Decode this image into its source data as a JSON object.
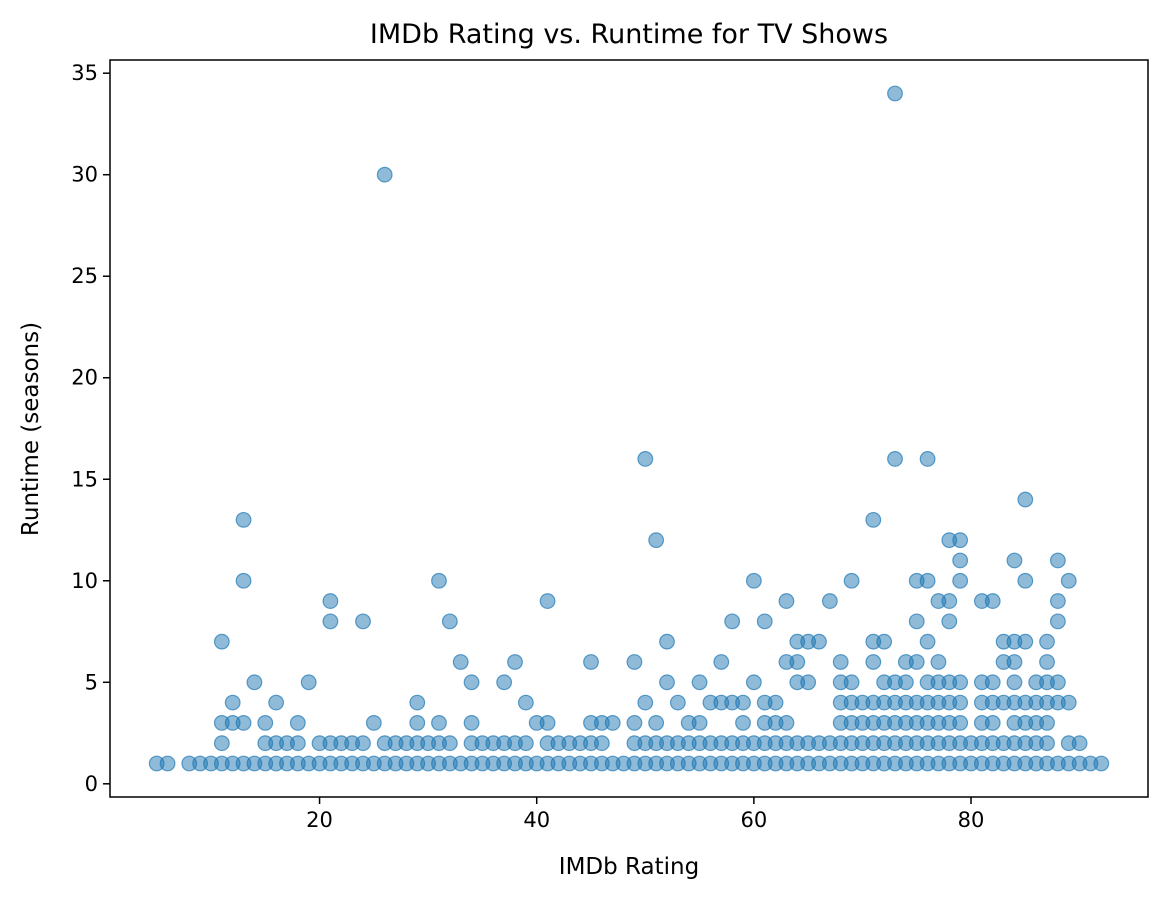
{
  "chart_data": {
    "type": "scatter",
    "title": "IMDb Rating vs. Runtime for TV Shows",
    "xlabel": "IMDb Rating",
    "ylabel": "Runtime (seasons)",
    "xlim": [
      0.7,
      96.3
    ],
    "ylim": [
      -0.65,
      35.65
    ],
    "x_ticks": [
      20,
      40,
      60,
      80
    ],
    "y_ticks": [
      0,
      5,
      10,
      15,
      20,
      25,
      30,
      35
    ],
    "grid": false,
    "legend": "none",
    "marker_color": "#1f77b4",
    "marker_opacity": 0.5,
    "points": [
      [
        5,
        1
      ],
      [
        6,
        1
      ],
      [
        8,
        1
      ],
      [
        9,
        1
      ],
      [
        10,
        1
      ],
      [
        11,
        1
      ],
      [
        12,
        1
      ],
      [
        13,
        1
      ],
      [
        14,
        1
      ],
      [
        15,
        1
      ],
      [
        16,
        1
      ],
      [
        17,
        1
      ],
      [
        18,
        1
      ],
      [
        19,
        1
      ],
      [
        20,
        1
      ],
      [
        21,
        1
      ],
      [
        22,
        1
      ],
      [
        23,
        1
      ],
      [
        24,
        1
      ],
      [
        25,
        1
      ],
      [
        26,
        1
      ],
      [
        27,
        1
      ],
      [
        28,
        1
      ],
      [
        29,
        1
      ],
      [
        30,
        1
      ],
      [
        31,
        1
      ],
      [
        32,
        1
      ],
      [
        33,
        1
      ],
      [
        34,
        1
      ],
      [
        35,
        1
      ],
      [
        36,
        1
      ],
      [
        37,
        1
      ],
      [
        38,
        1
      ],
      [
        39,
        1
      ],
      [
        40,
        1
      ],
      [
        41,
        1
      ],
      [
        42,
        1
      ],
      [
        43,
        1
      ],
      [
        44,
        1
      ],
      [
        45,
        1
      ],
      [
        46,
        1
      ],
      [
        47,
        1
      ],
      [
        48,
        1
      ],
      [
        49,
        1
      ],
      [
        50,
        1
      ],
      [
        51,
        1
      ],
      [
        52,
        1
      ],
      [
        53,
        1
      ],
      [
        54,
        1
      ],
      [
        55,
        1
      ],
      [
        56,
        1
      ],
      [
        57,
        1
      ],
      [
        58,
        1
      ],
      [
        59,
        1
      ],
      [
        60,
        1
      ],
      [
        61,
        1
      ],
      [
        62,
        1
      ],
      [
        63,
        1
      ],
      [
        64,
        1
      ],
      [
        65,
        1
      ],
      [
        66,
        1
      ],
      [
        67,
        1
      ],
      [
        68,
        1
      ],
      [
        69,
        1
      ],
      [
        70,
        1
      ],
      [
        71,
        1
      ],
      [
        72,
        1
      ],
      [
        73,
        1
      ],
      [
        74,
        1
      ],
      [
        75,
        1
      ],
      [
        76,
        1
      ],
      [
        77,
        1
      ],
      [
        78,
        1
      ],
      [
        79,
        1
      ],
      [
        80,
        1
      ],
      [
        81,
        1
      ],
      [
        82,
        1
      ],
      [
        83,
        1
      ],
      [
        84,
        1
      ],
      [
        85,
        1
      ],
      [
        86,
        1
      ],
      [
        87,
        1
      ],
      [
        88,
        1
      ],
      [
        89,
        1
      ],
      [
        90,
        1
      ],
      [
        91,
        1
      ],
      [
        92,
        1
      ],
      [
        11,
        2
      ],
      [
        15,
        2
      ],
      [
        16,
        2
      ],
      [
        17,
        2
      ],
      [
        18,
        2
      ],
      [
        20,
        2
      ],
      [
        21,
        2
      ],
      [
        22,
        2
      ],
      [
        23,
        2
      ],
      [
        24,
        2
      ],
      [
        26,
        2
      ],
      [
        27,
        2
      ],
      [
        28,
        2
      ],
      [
        29,
        2
      ],
      [
        30,
        2
      ],
      [
        31,
        2
      ],
      [
        32,
        2
      ],
      [
        34,
        2
      ],
      [
        35,
        2
      ],
      [
        36,
        2
      ],
      [
        37,
        2
      ],
      [
        38,
        2
      ],
      [
        39,
        2
      ],
      [
        41,
        2
      ],
      [
        42,
        2
      ],
      [
        43,
        2
      ],
      [
        44,
        2
      ],
      [
        45,
        2
      ],
      [
        46,
        2
      ],
      [
        49,
        2
      ],
      [
        50,
        2
      ],
      [
        51,
        2
      ],
      [
        52,
        2
      ],
      [
        53,
        2
      ],
      [
        54,
        2
      ],
      [
        55,
        2
      ],
      [
        56,
        2
      ],
      [
        57,
        2
      ],
      [
        58,
        2
      ],
      [
        59,
        2
      ],
      [
        60,
        2
      ],
      [
        61,
        2
      ],
      [
        62,
        2
      ],
      [
        63,
        2
      ],
      [
        64,
        2
      ],
      [
        65,
        2
      ],
      [
        66,
        2
      ],
      [
        67,
        2
      ],
      [
        68,
        2
      ],
      [
        69,
        2
      ],
      [
        70,
        2
      ],
      [
        71,
        2
      ],
      [
        72,
        2
      ],
      [
        73,
        2
      ],
      [
        74,
        2
      ],
      [
        75,
        2
      ],
      [
        76,
        2
      ],
      [
        77,
        2
      ],
      [
        78,
        2
      ],
      [
        79,
        2
      ],
      [
        80,
        2
      ],
      [
        81,
        2
      ],
      [
        82,
        2
      ],
      [
        83,
        2
      ],
      [
        84,
        2
      ],
      [
        85,
        2
      ],
      [
        86,
        2
      ],
      [
        87,
        2
      ],
      [
        89,
        2
      ],
      [
        90,
        2
      ],
      [
        11,
        3
      ],
      [
        12,
        3
      ],
      [
        13,
        3
      ],
      [
        15,
        3
      ],
      [
        18,
        3
      ],
      [
        25,
        3
      ],
      [
        29,
        3
      ],
      [
        31,
        3
      ],
      [
        34,
        3
      ],
      [
        40,
        3
      ],
      [
        41,
        3
      ],
      [
        45,
        3
      ],
      [
        46,
        3
      ],
      [
        47,
        3
      ],
      [
        49,
        3
      ],
      [
        51,
        3
      ],
      [
        54,
        3
      ],
      [
        55,
        3
      ],
      [
        59,
        3
      ],
      [
        61,
        3
      ],
      [
        62,
        3
      ],
      [
        63,
        3
      ],
      [
        68,
        3
      ],
      [
        69,
        3
      ],
      [
        70,
        3
      ],
      [
        71,
        3
      ],
      [
        72,
        3
      ],
      [
        73,
        3
      ],
      [
        74,
        3
      ],
      [
        75,
        3
      ],
      [
        76,
        3
      ],
      [
        77,
        3
      ],
      [
        78,
        3
      ],
      [
        79,
        3
      ],
      [
        81,
        3
      ],
      [
        82,
        3
      ],
      [
        84,
        3
      ],
      [
        85,
        3
      ],
      [
        86,
        3
      ],
      [
        87,
        3
      ],
      [
        12,
        4
      ],
      [
        16,
        4
      ],
      [
        29,
        4
      ],
      [
        39,
        4
      ],
      [
        50,
        4
      ],
      [
        53,
        4
      ],
      [
        56,
        4
      ],
      [
        57,
        4
      ],
      [
        58,
        4
      ],
      [
        59,
        4
      ],
      [
        61,
        4
      ],
      [
        62,
        4
      ],
      [
        68,
        4
      ],
      [
        69,
        4
      ],
      [
        70,
        4
      ],
      [
        71,
        4
      ],
      [
        72,
        4
      ],
      [
        73,
        4
      ],
      [
        74,
        4
      ],
      [
        75,
        4
      ],
      [
        76,
        4
      ],
      [
        77,
        4
      ],
      [
        78,
        4
      ],
      [
        79,
        4
      ],
      [
        81,
        4
      ],
      [
        82,
        4
      ],
      [
        83,
        4
      ],
      [
        84,
        4
      ],
      [
        85,
        4
      ],
      [
        86,
        4
      ],
      [
        87,
        4
      ],
      [
        88,
        4
      ],
      [
        89,
        4
      ],
      [
        14,
        5
      ],
      [
        19,
        5
      ],
      [
        34,
        5
      ],
      [
        37,
        5
      ],
      [
        45,
        6
      ],
      [
        52,
        5
      ],
      [
        55,
        5
      ],
      [
        60,
        5
      ],
      [
        64,
        5
      ],
      [
        65,
        5
      ],
      [
        68,
        5
      ],
      [
        69,
        5
      ],
      [
        72,
        5
      ],
      [
        73,
        5
      ],
      [
        74,
        5
      ],
      [
        76,
        5
      ],
      [
        77,
        5
      ],
      [
        78,
        5
      ],
      [
        79,
        5
      ],
      [
        81,
        5
      ],
      [
        82,
        5
      ],
      [
        84,
        5
      ],
      [
        86,
        5
      ],
      [
        87,
        5
      ],
      [
        88,
        5
      ],
      [
        33,
        6
      ],
      [
        38,
        6
      ],
      [
        49,
        6
      ],
      [
        57,
        6
      ],
      [
        63,
        6
      ],
      [
        64,
        6
      ],
      [
        68,
        6
      ],
      [
        71,
        6
      ],
      [
        74,
        6
      ],
      [
        75,
        6
      ],
      [
        77,
        6
      ],
      [
        83,
        6
      ],
      [
        84,
        6
      ],
      [
        87,
        6
      ],
      [
        11,
        7
      ],
      [
        52,
        7
      ],
      [
        64,
        7
      ],
      [
        65,
        7
      ],
      [
        66,
        7
      ],
      [
        71,
        7
      ],
      [
        72,
        7
      ],
      [
        76,
        7
      ],
      [
        83,
        7
      ],
      [
        84,
        7
      ],
      [
        85,
        7
      ],
      [
        87,
        7
      ],
      [
        21,
        8
      ],
      [
        24,
        8
      ],
      [
        32,
        8
      ],
      [
        58,
        8
      ],
      [
        61,
        8
      ],
      [
        75,
        8
      ],
      [
        78,
        8
      ],
      [
        88,
        8
      ],
      [
        21,
        9
      ],
      [
        41,
        9
      ],
      [
        63,
        9
      ],
      [
        67,
        9
      ],
      [
        77,
        9
      ],
      [
        78,
        9
      ],
      [
        81,
        9
      ],
      [
        82,
        9
      ],
      [
        88,
        9
      ],
      [
        13,
        10
      ],
      [
        31,
        10
      ],
      [
        60,
        10
      ],
      [
        69,
        10
      ],
      [
        75,
        10
      ],
      [
        76,
        10
      ],
      [
        79,
        10
      ],
      [
        85,
        10
      ],
      [
        89,
        10
      ],
      [
        79,
        11
      ],
      [
        84,
        11
      ],
      [
        88,
        11
      ],
      [
        51,
        12
      ],
      [
        78,
        12
      ],
      [
        79,
        12
      ],
      [
        13,
        13
      ],
      [
        71,
        13
      ],
      [
        85,
        14
      ],
      [
        50,
        16
      ],
      [
        73,
        16
      ],
      [
        76,
        16
      ],
      [
        26,
        30
      ],
      [
        73,
        34
      ]
    ]
  }
}
